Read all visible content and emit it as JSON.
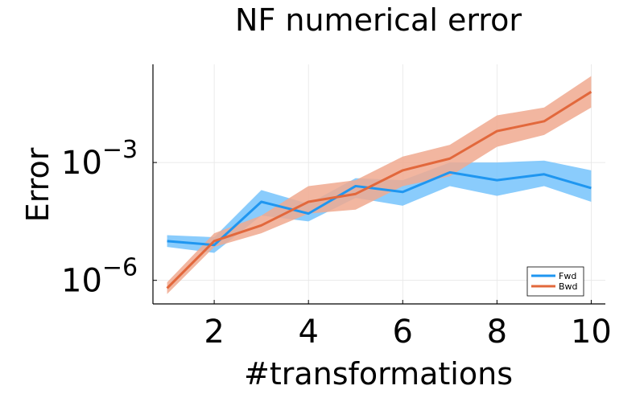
{
  "chart_data": {
    "type": "line",
    "title": "NF numerical error",
    "xlabel": "#transformations",
    "ylabel": "Error",
    "x": [
      1,
      2,
      3,
      4,
      5,
      6,
      7,
      8,
      9,
      10
    ],
    "xlim": [
      0.7,
      10.3
    ],
    "ylim_log10": [
      -6.6,
      -0.5
    ],
    "yscale": "log",
    "x_ticks": [
      2,
      4,
      6,
      8,
      10
    ],
    "y_ticks": [
      {
        "base": "10",
        "exp": "−3",
        "log10": -3
      },
      {
        "base": "10",
        "exp": "−6",
        "log10": -6
      }
    ],
    "grid": true,
    "legend_position": "bottom-right",
    "series": [
      {
        "name": "Fwd",
        "color": "#1f96f0",
        "band_color": "#75c3fb",
        "log10_center": [
          -5.0,
          -5.1,
          -4.0,
          -4.3,
          -3.6,
          -3.75,
          -3.25,
          -3.45,
          -3.3,
          -3.65
        ],
        "log10_lower": [
          -5.15,
          -5.3,
          -4.35,
          -4.5,
          -3.9,
          -4.1,
          -3.6,
          -3.85,
          -3.6,
          -4.0
        ],
        "log10_upper": [
          -4.85,
          -4.9,
          -3.7,
          -4.05,
          -3.4,
          -3.45,
          -3.0,
          -3.0,
          -2.95,
          -3.2
        ]
      },
      {
        "name": "Bwd",
        "color": "#e2683c",
        "band_color": "#f0a98f",
        "log10_center": [
          -6.2,
          -5.0,
          -4.6,
          -4.0,
          -3.8,
          -3.2,
          -2.9,
          -2.2,
          -1.95,
          -1.2
        ],
        "log10_lower": [
          -6.35,
          -5.15,
          -4.8,
          -4.3,
          -4.2,
          -3.6,
          -3.35,
          -2.6,
          -2.3,
          -1.6
        ],
        "log10_upper": [
          -6.05,
          -4.8,
          -4.35,
          -3.6,
          -3.45,
          -2.85,
          -2.55,
          -1.8,
          -1.6,
          -0.8
        ]
      }
    ]
  }
}
